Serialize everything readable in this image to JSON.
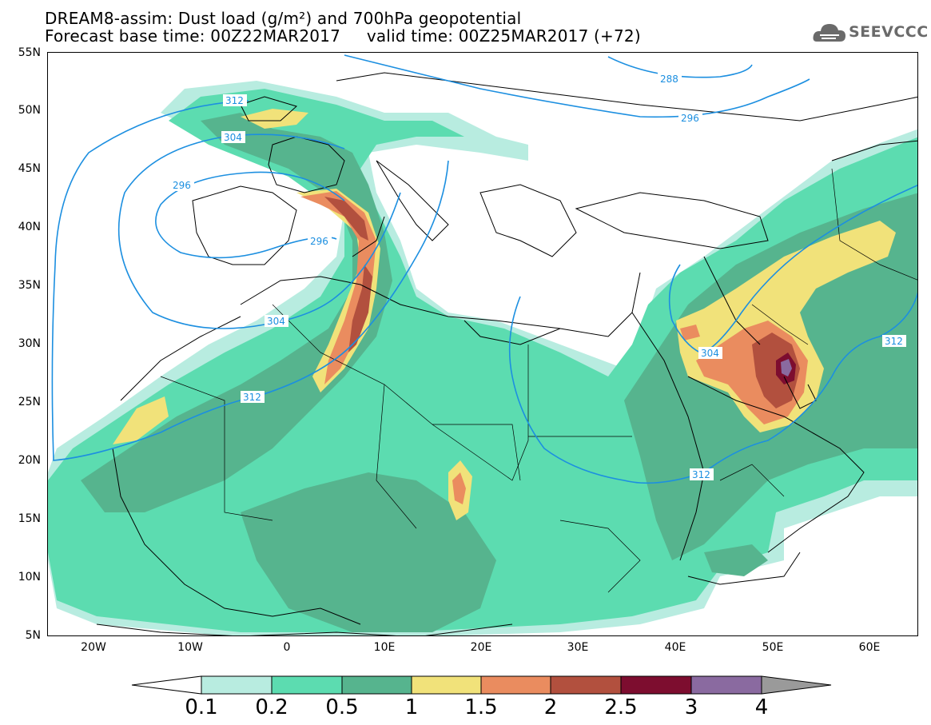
{
  "header": {
    "title_line1": "DREAM8-assim: Dust load (g/m²) and 700hPa geopotential",
    "title_line2": "Forecast base time: 00Z22MAR2017     valid time: 00Z25MAR2017 (+72)"
  },
  "logo": {
    "text": "SEEVCCC",
    "icon": "cloud-logo-icon"
  },
  "map": {
    "lat_labels": [
      "55N",
      "50N",
      "45N",
      "40N",
      "35N",
      "30N",
      "25N",
      "20N",
      "15N",
      "10N",
      "5N"
    ],
    "lon_labels": [
      "20W",
      "10W",
      "0",
      "10E",
      "20E",
      "30E",
      "40E",
      "50E",
      "60E"
    ],
    "contour_labels": [
      {
        "id": "c288",
        "text": "288"
      },
      {
        "id": "c296a",
        "text": "296"
      },
      {
        "id": "c296b",
        "text": "296"
      },
      {
        "id": "c296c",
        "text": "296"
      },
      {
        "id": "c304a",
        "text": "304"
      },
      {
        "id": "c304b",
        "text": "304"
      },
      {
        "id": "c304c",
        "text": "304"
      },
      {
        "id": "c312a",
        "text": "312"
      },
      {
        "id": "c312b",
        "text": "312"
      },
      {
        "id": "c312c",
        "text": "312"
      },
      {
        "id": "c312d",
        "text": "312"
      }
    ],
    "colors": {
      "c01": "#b8ece0",
      "c02": "#5cdcb0",
      "c05": "#56b48e",
      "c1": "#f1e27a",
      "c15": "#ea8c5f",
      "c2": "#b2503e",
      "c25": "#7d0d2f",
      "c3": "#8a6aa0",
      "contour": "#1c8fe0"
    }
  },
  "colorbar": {
    "labels": [
      "0.1",
      "0.2",
      "0.5",
      "1",
      "1.5",
      "2",
      "2.5",
      "3",
      "4"
    ],
    "colors": [
      "#b8ece0",
      "#5cdcb0",
      "#56b48e",
      "#f1e27a",
      "#ea8c5f",
      "#b2503e",
      "#7d0d2f",
      "#8a6aa0"
    ]
  }
}
